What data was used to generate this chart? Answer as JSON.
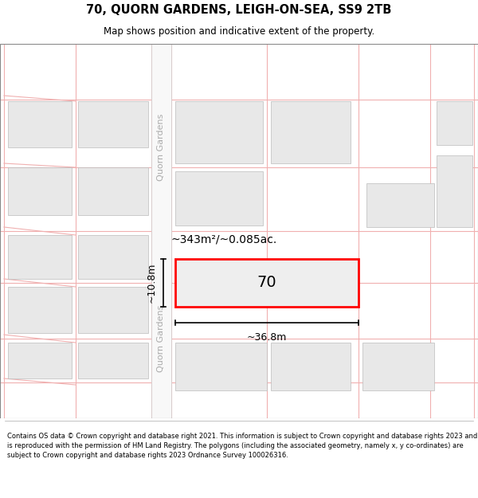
{
  "title": "70, QUORN GARDENS, LEIGH-ON-SEA, SS9 2TB",
  "subtitle": "Map shows position and indicative extent of the property.",
  "footer": "Contains OS data © Crown copyright and database right 2021. This information is subject to Crown copyright and database rights 2023 and is reproduced with the permission of HM Land Registry. The polygons (including the associated geometry, namely x, y co-ordinates) are subject to Crown copyright and database rights 2023 Ordnance Survey 100026316.",
  "bg_color": "#ffffff",
  "building_fill": "#e8e8e8",
  "building_edge": "#bbbbbb",
  "plot_fill": "#eeeeee",
  "plot_border": "#ff0000",
  "plot_label": "70",
  "area_text": "~343m²/~0.085ac.",
  "width_text": "~36.8m",
  "height_text": "~10.8m",
  "street_label": "Quorn Gardens",
  "grid_line_color": "#f0b0b0",
  "road_fill": "#f5f5f5",
  "road_edge": "#cccccc"
}
